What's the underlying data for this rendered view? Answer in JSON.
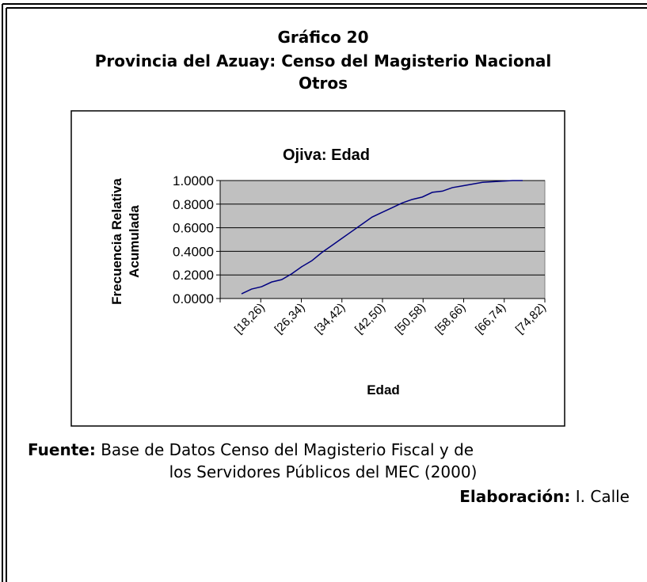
{
  "header": {
    "title_lines": [
      "Gráfico 20",
      "Provincia del Azuay: Censo del Magisterio Nacional",
      "Otros"
    ]
  },
  "chart_data": {
    "type": "line",
    "title": "Ojiva: Edad",
    "y_label_lines": [
      "Frecuencia Relativa",
      "Acumulada"
    ],
    "x_label": "Edad",
    "categories": [
      "[18,26)",
      null,
      null,
      null,
      "[26,34)",
      null,
      null,
      null,
      "[34,42)",
      null,
      null,
      null,
      "[42,50)",
      null,
      null,
      null,
      "[50,58)",
      null,
      null,
      null,
      "[58,66)",
      null,
      null,
      null,
      "[66,74)",
      null,
      null,
      null,
      "[74,82)"
    ],
    "series": [
      {
        "name": null,
        "color": "#000080",
        "values": [
          0.04,
          0.08,
          0.1,
          0.14,
          0.16,
          0.21,
          0.27,
          0.32,
          0.39,
          0.45,
          0.51,
          0.57,
          0.63,
          0.69,
          0.73,
          0.77,
          0.81,
          0.84,
          0.86,
          0.9,
          0.91,
          0.94,
          0.955,
          0.97,
          0.985,
          0.99,
          0.995,
          1.0,
          1.0
        ]
      }
    ],
    "ylim": [
      0,
      1
    ],
    "yticks": [
      {
        "value": 0,
        "label": "0.0000"
      },
      {
        "value": 0.2,
        "label": "0.2000"
      },
      {
        "value": 0.4,
        "label": "0.4000"
      },
      {
        "value": 0.6,
        "label": "0.6000"
      },
      {
        "value": 0.8,
        "label": "0.8000"
      },
      {
        "value": 1,
        "label": "1.0000"
      }
    ],
    "grid": true,
    "plot_background": "#c0c0c0"
  },
  "source": {
    "label": "Fuente:",
    "text_lines": [
      "Base de Datos Censo del Magisterio Fiscal  y de",
      "los Servidores Públicos del MEC (2000)"
    ]
  },
  "credit": {
    "label": "Elaboración:",
    "text": "I. Calle"
  }
}
